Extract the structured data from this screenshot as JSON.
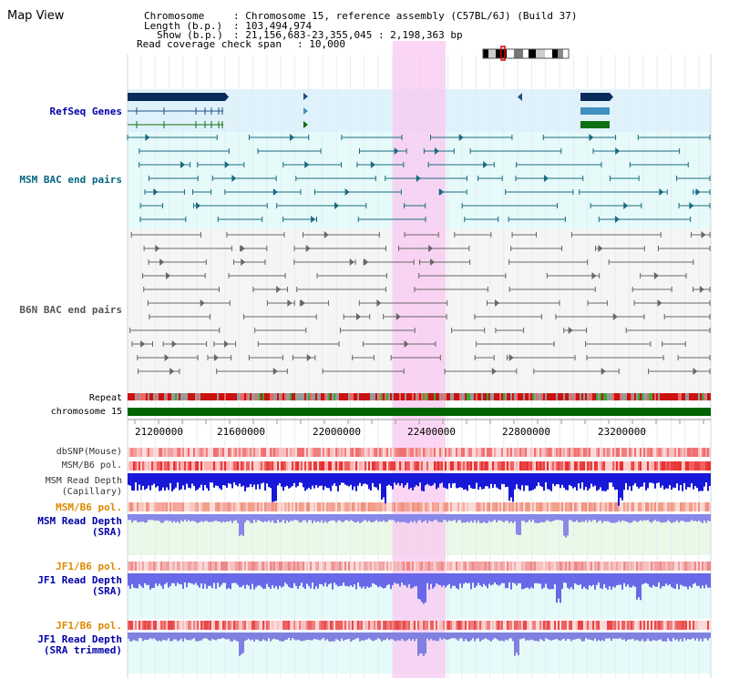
{
  "page": {
    "title": "Map View",
    "chromosome_label": "Chromosome",
    "chromosome_value": ": Chromosome 15, reference assembly (C57BL/6J) (Build 37)",
    "length_label": "Length (b.p.)",
    "length_value": ": 103,494,974",
    "show_label": "Show (b.p.)",
    "show_value": ": 21,156,683-23,355,045 : 2,198,363 bp",
    "coverage_label": "Read coverage check span",
    "coverage_value": ": 10,000"
  },
  "tracks": {
    "refseq": "RefSeq Genes",
    "msm_bac": "MSM BAC end pairs",
    "b6n_bac": "B6N BAC end pairs",
    "repeat": "Repeat",
    "chromosome": "chromosome 15",
    "dbsnp": "dbSNP(Mouse)",
    "msm_b6_pol_1": "MSM/B6 pol.",
    "msm_depth_cap_1": "MSM Read Depth",
    "msm_depth_cap_2": "(Capillary)",
    "msm_b6_pol_2": "MSM/B6 pol.",
    "msm_depth_sra_1": "MSM Read Depth",
    "msm_depth_sra_2": "(SRA)",
    "jf1_b6_pol_1": "JF1/B6 pol.",
    "jf1_depth_sra_1": "JF1 Read Depth",
    "jf1_depth_sra_2": "(SRA)",
    "jf1_b6_pol_2": "JF1/B6 pol.",
    "jf1_depth_trim_1": "JF1 Read Depth",
    "jf1_depth_trim_2": "(SRA trimmed)"
  },
  "axis": {
    "ticks": [
      "21200000",
      "21600000",
      "22000000",
      "22400000",
      "22800000",
      "23200000"
    ]
  },
  "colors": {
    "refseq_label": "#0000aa",
    "msm_bac_label": "#006680",
    "b6n_bac_label": "#555555",
    "pol_label": "#dd8800",
    "depth_label": "#0000aa",
    "highlight": "#f9c8f0"
  }
}
